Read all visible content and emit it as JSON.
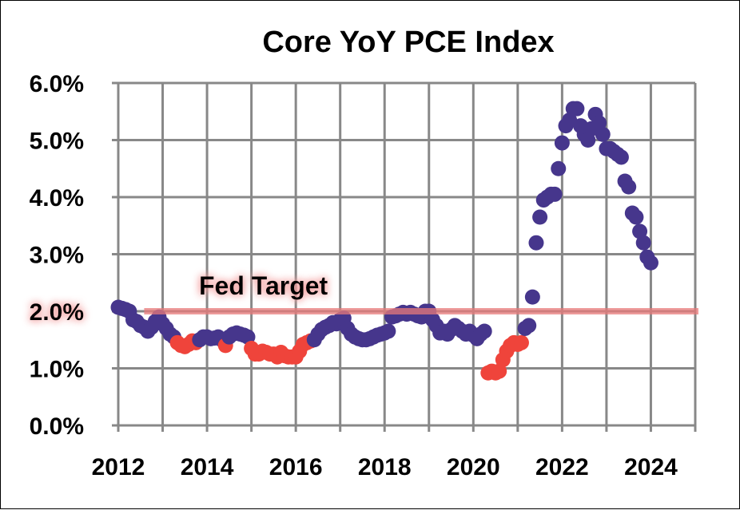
{
  "chart_data": {
    "type": "scatter",
    "title": "Core YoY PCE Index",
    "xlabel": "",
    "ylabel": "",
    "xlim": [
      2012,
      2025
    ],
    "ylim": [
      0,
      6
    ],
    "x_ticks": [
      "2012",
      "2014",
      "2016",
      "2018",
      "2020",
      "2022",
      "2024"
    ],
    "y_ticks": [
      "0.0%",
      "1.0%",
      "2.0%",
      "3.0%",
      "4.0%",
      "5.0%",
      "6.0%"
    ],
    "grid": true,
    "colors": {
      "above": "#46368c",
      "below": "#ef443b",
      "target_line": "#e87a7a"
    },
    "below_color_threshold": 1.5,
    "reference_line": {
      "label": "Fed Target",
      "value": 2.0,
      "start": "2012-08"
    },
    "start_month": "2012-01",
    "values": [
      2.07,
      2.05,
      2.03,
      2.0,
      1.85,
      1.82,
      1.75,
      1.72,
      1.65,
      1.72,
      1.82,
      1.9,
      1.78,
      1.7,
      1.6,
      1.55,
      1.45,
      1.4,
      1.38,
      1.42,
      1.48,
      1.45,
      1.5,
      1.55,
      1.55,
      1.52,
      1.53,
      1.55,
      1.5,
      1.4,
      1.55,
      1.6,
      1.62,
      1.6,
      1.58,
      1.55,
      1.35,
      1.25,
      1.25,
      1.3,
      1.28,
      1.25,
      1.25,
      1.2,
      1.28,
      1.22,
      1.2,
      1.2,
      1.2,
      1.3,
      1.42,
      1.45,
      1.48,
      1.5,
      1.6,
      1.68,
      1.72,
      1.75,
      1.8,
      1.78,
      1.85,
      1.88,
      1.7,
      1.6,
      1.55,
      1.52,
      1.5,
      1.5,
      1.52,
      1.55,
      1.58,
      1.6,
      1.62,
      1.65,
      1.9,
      1.92,
      1.95,
      1.98,
      1.95,
      1.98,
      1.95,
      1.92,
      1.9,
      2.0,
      2.0,
      1.85,
      1.75,
      1.62,
      1.65,
      1.6,
      1.68,
      1.75,
      1.7,
      1.65,
      1.6,
      1.65,
      1.58,
      1.52,
      1.6,
      1.65,
      0.92,
      0.95,
      0.92,
      0.95,
      1.15,
      1.3,
      1.4,
      1.45,
      1.42,
      1.45,
      1.7,
      1.75,
      2.25,
      3.2,
      3.65,
      3.95,
      4.0,
      4.05,
      4.05,
      4.5,
      4.95,
      5.25,
      5.35,
      5.55,
      5.55,
      5.25,
      5.1,
      5.0,
      5.2,
      5.45,
      5.3,
      5.1,
      4.85,
      4.85,
      4.8,
      4.75,
      4.7,
      4.28,
      4.18,
      3.72,
      3.65,
      3.4,
      3.2,
      2.95,
      2.85
    ]
  }
}
